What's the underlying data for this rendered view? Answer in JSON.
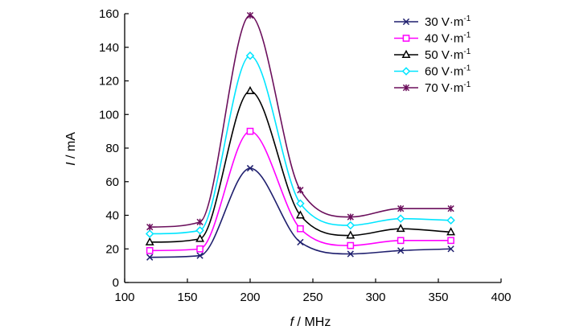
{
  "chart_data": {
    "type": "line",
    "title": "",
    "xlabel": {
      "var": "f",
      "unit": " / MHz"
    },
    "ylabel": {
      "var": "I",
      "unit": " / mA"
    },
    "xlim": [
      100,
      400
    ],
    "ylim": [
      0,
      160
    ],
    "xticks": [
      100,
      150,
      200,
      250,
      300,
      350,
      400
    ],
    "yticks": [
      0,
      20,
      40,
      60,
      80,
      100,
      120,
      140,
      160
    ],
    "grid": false,
    "legend_position": "top-right",
    "x": [
      120,
      160,
      200,
      240,
      280,
      320,
      360
    ],
    "series": [
      {
        "name": "30 V·m",
        "sup": "-1",
        "marker": "x",
        "color": "#1f1f6e",
        "values": [
          15,
          16,
          68,
          24,
          17,
          19,
          20
        ]
      },
      {
        "name": "40 V·m",
        "sup": "-1",
        "marker": "square",
        "color": "#ff00ff",
        "values": [
          19,
          20,
          90,
          32,
          22,
          25,
          25
        ]
      },
      {
        "name": "50 V·m",
        "sup": "-1",
        "marker": "triangle",
        "color": "#000000",
        "values": [
          24,
          26,
          114,
          40,
          28,
          32,
          30
        ]
      },
      {
        "name": "60 V·m",
        "sup": "-1",
        "marker": "diamond",
        "color": "#00e5ff",
        "values": [
          29,
          31,
          135,
          47,
          34,
          38,
          37
        ]
      },
      {
        "name": "70 V·m",
        "sup": "-1",
        "marker": "asterisk",
        "color": "#6b0f5c",
        "values": [
          33,
          36,
          159,
          55,
          39,
          44,
          44
        ]
      }
    ]
  }
}
